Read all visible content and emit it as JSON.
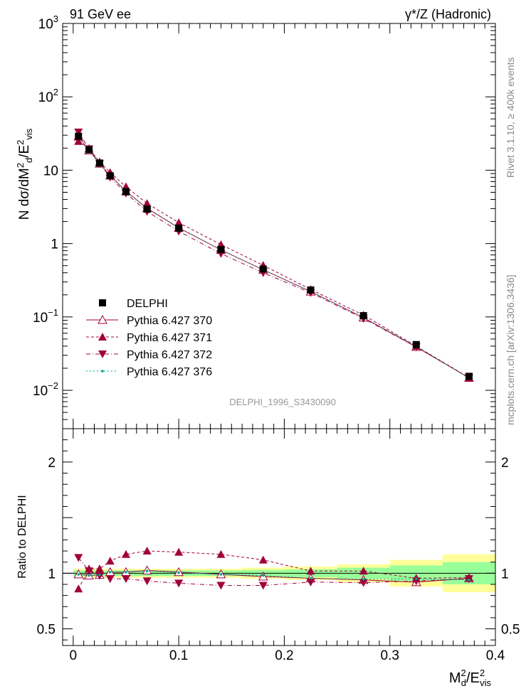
{
  "header": {
    "left": "91 GeV ee",
    "right": "γ*/Z (Hadronic)"
  },
  "side_labels": {
    "rivet": "Rivet 3.1.10, ≥ 400k events",
    "mcplots": "mcplots.cern.ch [arXiv:1306.3436]"
  },
  "watermark": "DELPHI_1996_S3430090",
  "colors": {
    "data": "#000000",
    "pythia": "#a0003a",
    "pythia376": "#00a08a",
    "band_yellow": "#ffff99",
    "band_green": "#99ff99"
  },
  "chart_data": [
    {
      "type": "scatter",
      "panel": "main",
      "ylabel": "N dσ/dM²d/E²vis",
      "yscale": "log",
      "ylim": [
        0.003,
        1000
      ],
      "xlim": [
        -0.01,
        0.4
      ],
      "yticks": [
        {
          "v": 0.01,
          "base": "10",
          "exp": "−2"
        },
        {
          "v": 0.1,
          "base": "10",
          "exp": "−1"
        },
        {
          "v": 1,
          "base": "1",
          "exp": ""
        },
        {
          "v": 10,
          "base": "10",
          "exp": ""
        },
        {
          "v": 100,
          "base": "10",
          "exp": "2"
        },
        {
          "v": 1000,
          "base": "10",
          "exp": "3"
        }
      ],
      "x": [
        0.005,
        0.015,
        0.025,
        0.035,
        0.05,
        0.07,
        0.1,
        0.14,
        0.18,
        0.225,
        0.275,
        0.325,
        0.375
      ],
      "legend": [
        "DELPHI",
        "Pythia 6.427 370",
        "Pythia 6.427 371",
        "Pythia 6.427 372",
        "Pythia 6.427 376"
      ],
      "series": [
        {
          "name": "DELPHI",
          "values": [
            29.0,
            19.0,
            12.5,
            8.4,
            5.1,
            2.95,
            1.62,
            0.83,
            0.45,
            0.233,
            0.104,
            0.042,
            0.0155
          ]
        },
        {
          "name": "Pythia 6.427 370",
          "values": [
            28.7,
            18.6,
            12.3,
            8.5,
            5.15,
            3.03,
            1.64,
            0.82,
            0.44,
            0.222,
            0.098,
            0.039,
            0.0148
          ]
        },
        {
          "name": "Pythia 6.427 371",
          "values": [
            24.8,
            19.8,
            13.0,
            9.3,
            5.95,
            3.53,
            1.93,
            0.97,
            0.505,
            0.237,
            0.106,
            0.04,
            0.0149
          ]
        },
        {
          "name": "Pythia 6.427 372",
          "values": [
            33.0,
            19.5,
            12.3,
            8.0,
            4.85,
            2.74,
            1.47,
            0.73,
            0.4,
            0.214,
            0.095,
            0.039,
            0.0148
          ]
        },
        {
          "name": "Pythia 6.427 376",
          "values": [
            28.7,
            18.6,
            12.3,
            8.5,
            5.15,
            3.0,
            1.63,
            0.82,
            0.44,
            0.222,
            0.098,
            0.04,
            0.0146
          ]
        }
      ]
    },
    {
      "type": "line",
      "panel": "ratio",
      "ylabel": "Ratio to DELPHI",
      "ylim": [
        0.35,
        2.3
      ],
      "yticks": [
        0.5,
        1,
        2
      ],
      "xlabel": "M²d/E²vis",
      "xticks": [
        0,
        0.1,
        0.2,
        0.3,
        0.4
      ],
      "x": [
        0.005,
        0.015,
        0.025,
        0.035,
        0.05,
        0.07,
        0.1,
        0.14,
        0.18,
        0.225,
        0.275,
        0.325,
        0.375
      ],
      "bands": {
        "edges": [
          0,
          0.01,
          0.02,
          0.03,
          0.04,
          0.06,
          0.08,
          0.12,
          0.16,
          0.2,
          0.25,
          0.3,
          0.35,
          0.4
        ],
        "yellow": [
          0.04,
          0.04,
          0.04,
          0.04,
          0.04,
          0.04,
          0.04,
          0.04,
          0.05,
          0.06,
          0.08,
          0.12,
          0.17
        ],
        "green": [
          0.025,
          0.025,
          0.025,
          0.025,
          0.025,
          0.025,
          0.025,
          0.025,
          0.03,
          0.035,
          0.05,
          0.07,
          0.1
        ]
      },
      "series": [
        {
          "name": "Pythia 6.427 370",
          "values": [
            0.99,
            0.98,
            0.985,
            1.01,
            1.01,
            1.025,
            1.01,
            0.99,
            0.97,
            0.955,
            0.94,
            0.92,
            0.955
          ]
        },
        {
          "name": "Pythia 6.427 371",
          "values": [
            0.86,
            1.04,
            1.04,
            1.11,
            1.17,
            1.2,
            1.19,
            1.17,
            1.12,
            1.02,
            1.02,
            0.955,
            0.96
          ]
        },
        {
          "name": "Pythia 6.427 372",
          "values": [
            1.14,
            1.02,
            0.98,
            0.95,
            0.95,
            0.93,
            0.91,
            0.89,
            0.89,
            0.92,
            0.915,
            0.93,
            0.95
          ]
        },
        {
          "name": "Pythia 6.427 376",
          "values": [
            0.99,
            0.98,
            0.985,
            1.01,
            1.01,
            1.02,
            1.005,
            0.99,
            0.98,
            0.955,
            0.945,
            0.95,
            0.94
          ]
        }
      ]
    }
  ]
}
